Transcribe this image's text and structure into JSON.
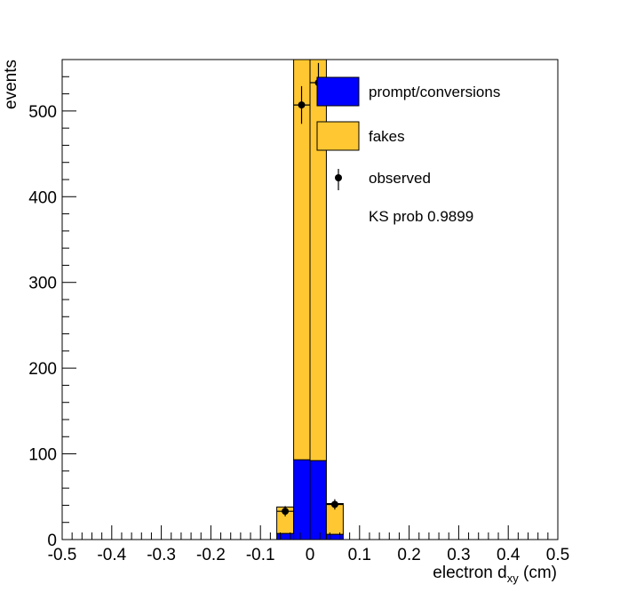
{
  "colors": {
    "prompt": "#0000ff",
    "fakes": "#ffc832",
    "observed": "#000000",
    "frame": "#000000"
  },
  "chart_data": {
    "type": "bar",
    "stacked": true,
    "xlabel_main": "electron d",
    "xlabel_sub": "xy",
    "xlabel_unit": " (cm)",
    "ylabel": "events",
    "xlim": [
      -0.5,
      0.5
    ],
    "ylim": [
      0,
      560
    ],
    "x_ticks": [
      "-0.5",
      "-0.4",
      "-0.3",
      "-0.2",
      "-0.1",
      "0",
      "0.1",
      "0.2",
      "0.3",
      "0.4",
      "0.5"
    ],
    "x_tick_values": [
      -0.5,
      -0.4,
      -0.3,
      -0.2,
      -0.1,
      0,
      0.1,
      0.2,
      0.3,
      0.4,
      0.5
    ],
    "y_ticks": [
      "0",
      "100",
      "200",
      "300",
      "400",
      "500"
    ],
    "y_tick_values": [
      0,
      100,
      200,
      300,
      400,
      500
    ],
    "bins": [
      {
        "x0": -0.067,
        "x1": -0.033,
        "prompt": 7,
        "fakes": 31
      },
      {
        "x0": -0.033,
        "x1": 0.0,
        "prompt": 93,
        "fakes": 467
      },
      {
        "x0": 0.0,
        "x1": 0.033,
        "prompt": 92,
        "fakes": 468
      },
      {
        "x0": 0.033,
        "x1": 0.067,
        "prompt": 6,
        "fakes": 36
      }
    ],
    "observed": [
      {
        "x": -0.05,
        "y": 33,
        "err": 6
      },
      {
        "x": -0.017,
        "y": 507,
        "err": 22
      },
      {
        "x": 0.017,
        "y": 533,
        "err": 23
      },
      {
        "x": 0.05,
        "y": 41,
        "err": 6
      }
    ],
    "legend": {
      "position": "top-right",
      "entries": [
        {
          "label": "prompt/conversions",
          "kind": "box",
          "color_key": "prompt"
        },
        {
          "label": "fakes",
          "kind": "box",
          "color_key": "fakes"
        },
        {
          "label": "observed",
          "kind": "marker",
          "color_key": "observed"
        }
      ]
    },
    "annotation": "KS prob 0.9899"
  }
}
